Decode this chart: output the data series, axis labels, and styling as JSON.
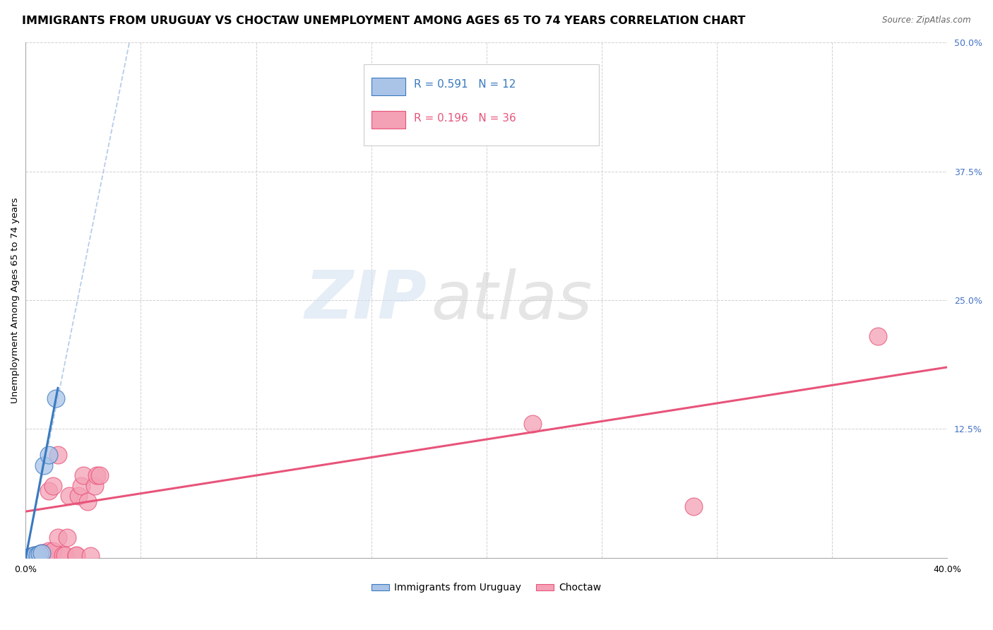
{
  "title": "IMMIGRANTS FROM URUGUAY VS CHOCTAW UNEMPLOYMENT AMONG AGES 65 TO 74 YEARS CORRELATION CHART",
  "source": "Source: ZipAtlas.com",
  "ylabel": "Unemployment Among Ages 65 to 74 years",
  "xlim": [
    0.0,
    0.4
  ],
  "ylim": [
    0.0,
    0.5
  ],
  "xticks": [
    0.0,
    0.05,
    0.1,
    0.15,
    0.2,
    0.25,
    0.3,
    0.35,
    0.4
  ],
  "yticks": [
    0.0,
    0.125,
    0.25,
    0.375,
    0.5
  ],
  "R_uruguay": 0.591,
  "N_uruguay": 12,
  "R_choctaw": 0.196,
  "N_choctaw": 36,
  "uruguay_scatter": [
    [
      0.002,
      0.001
    ],
    [
      0.003,
      0.001
    ],
    [
      0.003,
      0.002
    ],
    [
      0.004,
      0.001
    ],
    [
      0.005,
      0.001
    ],
    [
      0.004,
      0.003
    ],
    [
      0.005,
      0.003
    ],
    [
      0.006,
      0.004
    ],
    [
      0.007,
      0.005
    ],
    [
      0.008,
      0.09
    ],
    [
      0.01,
      0.1
    ],
    [
      0.013,
      0.155
    ]
  ],
  "choctaw_scatter": [
    [
      0.002,
      0.001
    ],
    [
      0.003,
      0.001
    ],
    [
      0.004,
      0.001
    ],
    [
      0.005,
      0.001
    ],
    [
      0.006,
      0.001
    ],
    [
      0.007,
      0.001
    ],
    [
      0.008,
      0.001
    ],
    [
      0.004,
      0.003
    ],
    [
      0.005,
      0.003
    ],
    [
      0.006,
      0.003
    ],
    [
      0.007,
      0.005
    ],
    [
      0.008,
      0.005
    ],
    [
      0.009,
      0.005
    ],
    [
      0.01,
      0.007
    ],
    [
      0.012,
      0.007
    ],
    [
      0.01,
      0.065
    ],
    [
      0.012,
      0.07
    ],
    [
      0.014,
      0.02
    ],
    [
      0.014,
      0.1
    ],
    [
      0.016,
      0.003
    ],
    [
      0.017,
      0.003
    ],
    [
      0.018,
      0.02
    ],
    [
      0.019,
      0.06
    ],
    [
      0.022,
      0.002
    ],
    [
      0.022,
      0.003
    ],
    [
      0.023,
      0.06
    ],
    [
      0.024,
      0.07
    ],
    [
      0.025,
      0.08
    ],
    [
      0.027,
      0.055
    ],
    [
      0.028,
      0.002
    ],
    [
      0.03,
      0.07
    ],
    [
      0.031,
      0.08
    ],
    [
      0.032,
      0.08
    ],
    [
      0.22,
      0.13
    ],
    [
      0.29,
      0.05
    ],
    [
      0.37,
      0.215
    ]
  ],
  "choctaw_regline": [
    [
      0.0,
      0.045
    ],
    [
      0.4,
      0.185
    ]
  ],
  "uruguay_regline": [
    [
      0.0,
      0.0
    ],
    [
      0.014,
      0.165
    ]
  ],
  "uruguay_dashline": [
    [
      0.0,
      0.0
    ],
    [
      0.045,
      0.5
    ]
  ],
  "uruguay_line_color": "#3a7abf",
  "choctaw_line_color": "#e8547a",
  "uruguay_scatter_color": "#aac4e8",
  "choctaw_scatter_color": "#f4a0b5",
  "uruguay_dash_color": "#aac4e8",
  "background_color": "#ffffff",
  "grid_color": "#cccccc",
  "legend_items": [
    {
      "label": "Immigrants from Uruguay",
      "color": "#aac4e8"
    },
    {
      "label": "Choctaw",
      "color": "#f4a0b5"
    }
  ]
}
